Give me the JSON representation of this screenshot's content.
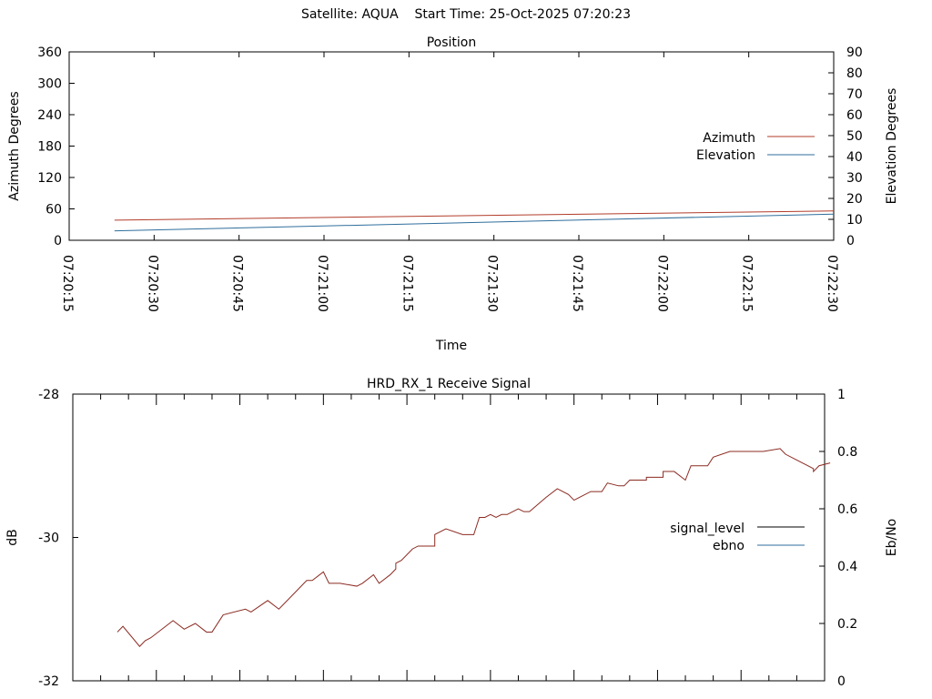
{
  "header": {
    "satellite_label": "Satellite: AQUA",
    "start_time_label": "Start Time: 25-Oct-2025 07:20:23"
  },
  "colors": {
    "azimuth": "#b23c2a",
    "elevation": "#2f6e9c",
    "signal_level": "#000000",
    "ebno": "#2f6e9c",
    "signal_trace": "#8b2b22"
  },
  "chart_data": [
    {
      "type": "line",
      "title": "Position",
      "xlabel": "Time",
      "ylabel": "Azimuth Degrees",
      "y2label": "Elevation Degrees",
      "x_ticks": [
        "07:20:15",
        "07:20:30",
        "07:20:45",
        "07:21:00",
        "07:21:15",
        "07:21:30",
        "07:21:45",
        "07:22:00",
        "07:22:15",
        "07:22:30"
      ],
      "xlim": [
        "07:20:15",
        "07:22:30"
      ],
      "ylim": [
        0,
        360
      ],
      "y_ticks": [
        0,
        60,
        120,
        180,
        240,
        300,
        360
      ],
      "y2lim": [
        0,
        90
      ],
      "y2_ticks": [
        0,
        10,
        20,
        30,
        40,
        50,
        60,
        70,
        80,
        90
      ],
      "legend_position": "right",
      "grid": false,
      "series": [
        {
          "name": "Azimuth",
          "axis": "y",
          "x": [
            "07:20:23",
            "07:22:30"
          ],
          "values": [
            38.5,
            56
          ]
        },
        {
          "name": "Elevation",
          "axis": "y2",
          "x": [
            "07:20:23",
            "07:22:30"
          ],
          "values": [
            4.5,
            12.5
          ]
        }
      ]
    },
    {
      "type": "line",
      "title": "HRD_RX_1 Receive Signal",
      "xlabel": "",
      "ylabel": "dB",
      "y2label": "Eb/No",
      "ylim": [
        -32,
        -28
      ],
      "y_ticks": [
        -32,
        -30,
        -28
      ],
      "y2lim": [
        0,
        1
      ],
      "y2_ticks": [
        0,
        0.2,
        0.4,
        0.6,
        0.8,
        1
      ],
      "legend_position": "right",
      "grid": false,
      "series": [
        {
          "name": "signal_level",
          "axis": "y",
          "x": [],
          "values": []
        },
        {
          "name": "ebno",
          "axis": "y2",
          "x": [],
          "values": []
        }
      ],
      "trace": {
        "axis": "y2",
        "x": [
          "07:20:23",
          "07:20:24",
          "07:20:27",
          "07:20:28",
          "07:20:29",
          "07:20:33",
          "07:20:35",
          "07:20:35",
          "07:20:37",
          "07:20:39",
          "07:20:39",
          "07:20:40",
          "07:20:42",
          "07:20:42",
          "07:20:46",
          "07:20:46",
          "07:20:46",
          "07:20:47",
          "07:20:50",
          "07:20:50",
          "07:20:52",
          "07:20:52",
          "07:20:55",
          "07:20:57",
          "07:20:58",
          "07:21:00",
          "07:21:00",
          "07:21:01",
          "07:21:03",
          "07:21:03",
          "07:21:06",
          "07:21:07",
          "07:21:09",
          "07:21:10",
          "07:21:10",
          "07:21:12",
          "07:21:13",
          "07:21:13",
          "07:21:14",
          "07:21:16",
          "07:21:17",
          "07:21:20",
          "07:21:20",
          "07:21:22",
          "07:21:25",
          "07:21:27",
          "07:21:28",
          "07:21:29",
          "07:21:30",
          "07:21:31",
          "07:21:32",
          "07:21:33",
          "07:21:35",
          "07:21:36",
          "07:21:37",
          "07:21:40",
          "07:21:42",
          "07:21:44",
          "07:21:45",
          "07:21:48",
          "07:21:50",
          "07:21:51",
          "07:21:53",
          "07:21:54",
          "07:21:55",
          "07:21:58",
          "07:21:58",
          "07:22:01",
          "07:22:01",
          "07:22:03",
          "07:22:05",
          "07:22:06",
          "07:22:09",
          "07:22:10",
          "07:22:10",
          "07:22:13",
          "07:22:17",
          "07:22:19",
          "07:22:22",
          "07:22:23",
          "07:22:25",
          "07:22:28",
          "07:22:28",
          "07:22:29",
          "07:22:31"
        ],
        "values": [
          0.17,
          0.19,
          0.12,
          0.14,
          0.15,
          0.21,
          0.18,
          0.18,
          0.2,
          0.17,
          0.17,
          0.17,
          0.23,
          0.23,
          0.25,
          0.25,
          0.25,
          0.24,
          0.28,
          0.28,
          0.25,
          0.25,
          0.31,
          0.35,
          0.35,
          0.38,
          0.38,
          0.34,
          0.34,
          0.34,
          0.33,
          0.34,
          0.37,
          0.34,
          0.34,
          0.37,
          0.39,
          0.41,
          0.42,
          0.46,
          0.47,
          0.47,
          0.51,
          0.53,
          0.51,
          0.51,
          0.57,
          0.57,
          0.58,
          0.57,
          0.58,
          0.58,
          0.6,
          0.59,
          0.59,
          0.64,
          0.67,
          0.65,
          0.63,
          0.66,
          0.66,
          0.69,
          0.68,
          0.68,
          0.7,
          0.7,
          0.71,
          0.71,
          0.73,
          0.73,
          0.7,
          0.75,
          0.75,
          0.78,
          0.78,
          0.8,
          0.8,
          0.8,
          0.81,
          0.79,
          0.77,
          0.74,
          0.73,
          0.75,
          0.76
        ]
      }
    }
  ]
}
